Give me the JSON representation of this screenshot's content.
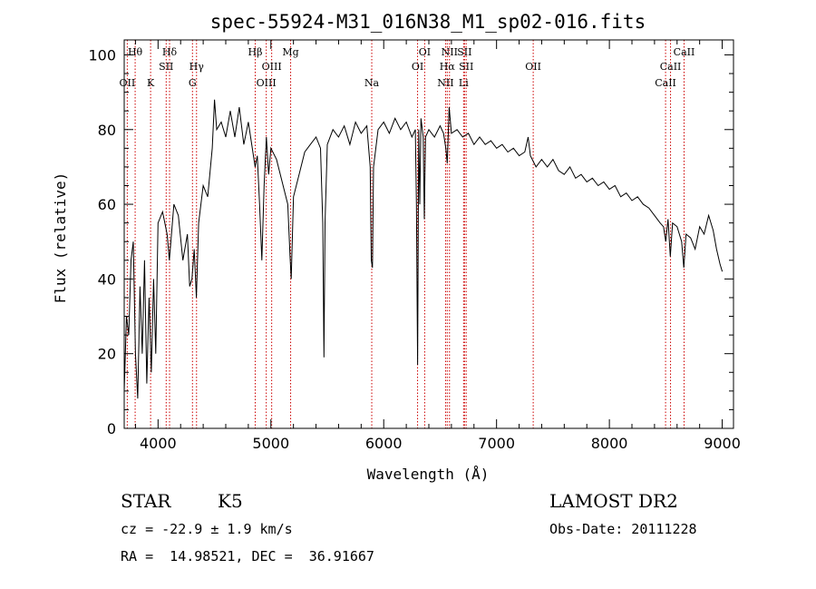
{
  "chart_data": {
    "type": "line",
    "title": "spec-55924-M31_016N38_M1_sp02-016.fits",
    "xlabel": "Wavelength (Å)",
    "ylabel": "Flux (relative)",
    "xlim": [
      3700,
      9100
    ],
    "ylim": [
      0,
      104
    ],
    "xticks": [
      4000,
      5000,
      6000,
      7000,
      8000,
      9000
    ],
    "yticks": [
      0,
      20,
      40,
      60,
      80,
      100
    ],
    "grid": false,
    "line_color": "#000000",
    "marker_color": "#cc0000",
    "series": [
      {
        "points": [
          [
            3700,
            10
          ],
          [
            3720,
            30
          ],
          [
            3740,
            25
          ],
          [
            3760,
            45
          ],
          [
            3780,
            50
          ],
          [
            3800,
            20
          ],
          [
            3820,
            8
          ],
          [
            3840,
            38
          ],
          [
            3860,
            20
          ],
          [
            3880,
            45
          ],
          [
            3900,
            12
          ],
          [
            3920,
            35
          ],
          [
            3940,
            15
          ],
          [
            3960,
            40
          ],
          [
            3980,
            20
          ],
          [
            4000,
            55
          ],
          [
            4040,
            58
          ],
          [
            4080,
            52
          ],
          [
            4100,
            45
          ],
          [
            4140,
            60
          ],
          [
            4180,
            57
          ],
          [
            4220,
            45
          ],
          [
            4260,
            52
          ],
          [
            4280,
            38
          ],
          [
            4300,
            40
          ],
          [
            4320,
            48
          ],
          [
            4340,
            35
          ],
          [
            4360,
            55
          ],
          [
            4400,
            65
          ],
          [
            4440,
            62
          ],
          [
            4480,
            75
          ],
          [
            4500,
            88
          ],
          [
            4520,
            80
          ],
          [
            4560,
            82
          ],
          [
            4600,
            78
          ],
          [
            4640,
            85
          ],
          [
            4680,
            78
          ],
          [
            4720,
            86
          ],
          [
            4760,
            76
          ],
          [
            4800,
            82
          ],
          [
            4840,
            74
          ],
          [
            4860,
            70
          ],
          [
            4880,
            73
          ],
          [
            4900,
            60
          ],
          [
            4920,
            45
          ],
          [
            4940,
            65
          ],
          [
            4960,
            78
          ],
          [
            4980,
            68
          ],
          [
            5000,
            75
          ],
          [
            5050,
            72
          ],
          [
            5100,
            66
          ],
          [
            5150,
            60
          ],
          [
            5170,
            46
          ],
          [
            5180,
            40
          ],
          [
            5200,
            62
          ],
          [
            5250,
            68
          ],
          [
            5300,
            74
          ],
          [
            5350,
            76
          ],
          [
            5400,
            78
          ],
          [
            5440,
            75
          ],
          [
            5460,
            55
          ],
          [
            5470,
            19
          ],
          [
            5480,
            55
          ],
          [
            5500,
            76
          ],
          [
            5550,
            80
          ],
          [
            5600,
            78
          ],
          [
            5650,
            81
          ],
          [
            5700,
            76
          ],
          [
            5750,
            82
          ],
          [
            5800,
            79
          ],
          [
            5850,
            81
          ],
          [
            5880,
            70
          ],
          [
            5890,
            45
          ],
          [
            5900,
            43
          ],
          [
            5910,
            70
          ],
          [
            5950,
            80
          ],
          [
            6000,
            82
          ],
          [
            6050,
            79
          ],
          [
            6100,
            83
          ],
          [
            6150,
            80
          ],
          [
            6200,
            82
          ],
          [
            6250,
            78
          ],
          [
            6280,
            80
          ],
          [
            6290,
            60
          ],
          [
            6300,
            17
          ],
          [
            6310,
            80
          ],
          [
            6320,
            60
          ],
          [
            6330,
            83
          ],
          [
            6350,
            78
          ],
          [
            6360,
            56
          ],
          [
            6370,
            78
          ],
          [
            6400,
            80
          ],
          [
            6450,
            78
          ],
          [
            6500,
            81
          ],
          [
            6530,
            79
          ],
          [
            6550,
            75
          ],
          [
            6563,
            71
          ],
          [
            6580,
            86
          ],
          [
            6600,
            79
          ],
          [
            6650,
            80
          ],
          [
            6700,
            78
          ],
          [
            6750,
            79
          ],
          [
            6800,
            76
          ],
          [
            6850,
            78
          ],
          [
            6900,
            76
          ],
          [
            6950,
            77
          ],
          [
            7000,
            75
          ],
          [
            7050,
            76
          ],
          [
            7100,
            74
          ],
          [
            7150,
            75
          ],
          [
            7200,
            73
          ],
          [
            7250,
            74
          ],
          [
            7280,
            78
          ],
          [
            7300,
            73
          ],
          [
            7350,
            70
          ],
          [
            7400,
            72
          ],
          [
            7450,
            70
          ],
          [
            7500,
            72
          ],
          [
            7550,
            69
          ],
          [
            7600,
            68
          ],
          [
            7650,
            70
          ],
          [
            7700,
            67
          ],
          [
            7750,
            68
          ],
          [
            7800,
            66
          ],
          [
            7850,
            67
          ],
          [
            7900,
            65
          ],
          [
            7950,
            66
          ],
          [
            8000,
            64
          ],
          [
            8050,
            65
          ],
          [
            8100,
            62
          ],
          [
            8150,
            63
          ],
          [
            8200,
            61
          ],
          [
            8250,
            62
          ],
          [
            8300,
            60
          ],
          [
            8350,
            59
          ],
          [
            8400,
            57
          ],
          [
            8450,
            55
          ],
          [
            8480,
            54
          ],
          [
            8500,
            50
          ],
          [
            8520,
            56
          ],
          [
            8540,
            46
          ],
          [
            8560,
            55
          ],
          [
            8600,
            54
          ],
          [
            8640,
            50
          ],
          [
            8660,
            43
          ],
          [
            8680,
            52
          ],
          [
            8720,
            51
          ],
          [
            8760,
            48
          ],
          [
            8800,
            54
          ],
          [
            8840,
            52
          ],
          [
            8880,
            57
          ],
          [
            8920,
            53
          ],
          [
            8950,
            48
          ],
          [
            8980,
            44
          ],
          [
            9000,
            42
          ]
        ]
      }
    ],
    "line_markers": [
      {
        "label": "OII",
        "x": 3727,
        "tier": 3
      },
      {
        "label": "Hθ",
        "x": 3797,
        "tier": 1
      },
      {
        "label": "K",
        "x": 3934,
        "tier": 3
      },
      {
        "label": "Hδ",
        "x": 4102,
        "tier": 1
      },
      {
        "label": "SII",
        "x": 4072,
        "tier": 2
      },
      {
        "label": "Hγ",
        "x": 4341,
        "tier": 2
      },
      {
        "label": "G",
        "x": 4305,
        "tier": 3
      },
      {
        "label": "Hβ",
        "x": 4861,
        "tier": 1
      },
      {
        "label": "OIII",
        "x": 5007,
        "tier": 2
      },
      {
        "label": "OIII",
        "x": 4959,
        "tier": 3
      },
      {
        "label": "Mg",
        "x": 5175,
        "tier": 1
      },
      {
        "label": "Na",
        "x": 5894,
        "tier": 3
      },
      {
        "label": "OI",
        "x": 6300,
        "tier": 2
      },
      {
        "label": "OI",
        "x": 6363,
        "tier": 1
      },
      {
        "label": "NII",
        "x": 6583,
        "tier": 1
      },
      {
        "label": "Hα",
        "x": 6563,
        "tier": 2
      },
      {
        "label": "NII",
        "x": 6548,
        "tier": 3
      },
      {
        "label": "SII",
        "x": 6716,
        "tier": 1
      },
      {
        "label": "SII",
        "x": 6731,
        "tier": 2
      },
      {
        "label": "Li",
        "x": 6708,
        "tier": 3
      },
      {
        "label": "OII",
        "x": 7325,
        "tier": 2
      },
      {
        "label": "CaII",
        "x": 8662,
        "tier": 1
      },
      {
        "label": "CaII",
        "x": 8542,
        "tier": 2
      },
      {
        "label": "CaII",
        "x": 8498,
        "tier": 3
      }
    ]
  },
  "info": {
    "class_label": "STAR",
    "subclass": "K5",
    "survey": "LAMOST DR2",
    "cz": "cz = -22.9 ± 1.9 km/s",
    "obs_date": "Obs-Date: 20111228",
    "radec": "RA =  14.98521, DEC =  36.91667"
  }
}
